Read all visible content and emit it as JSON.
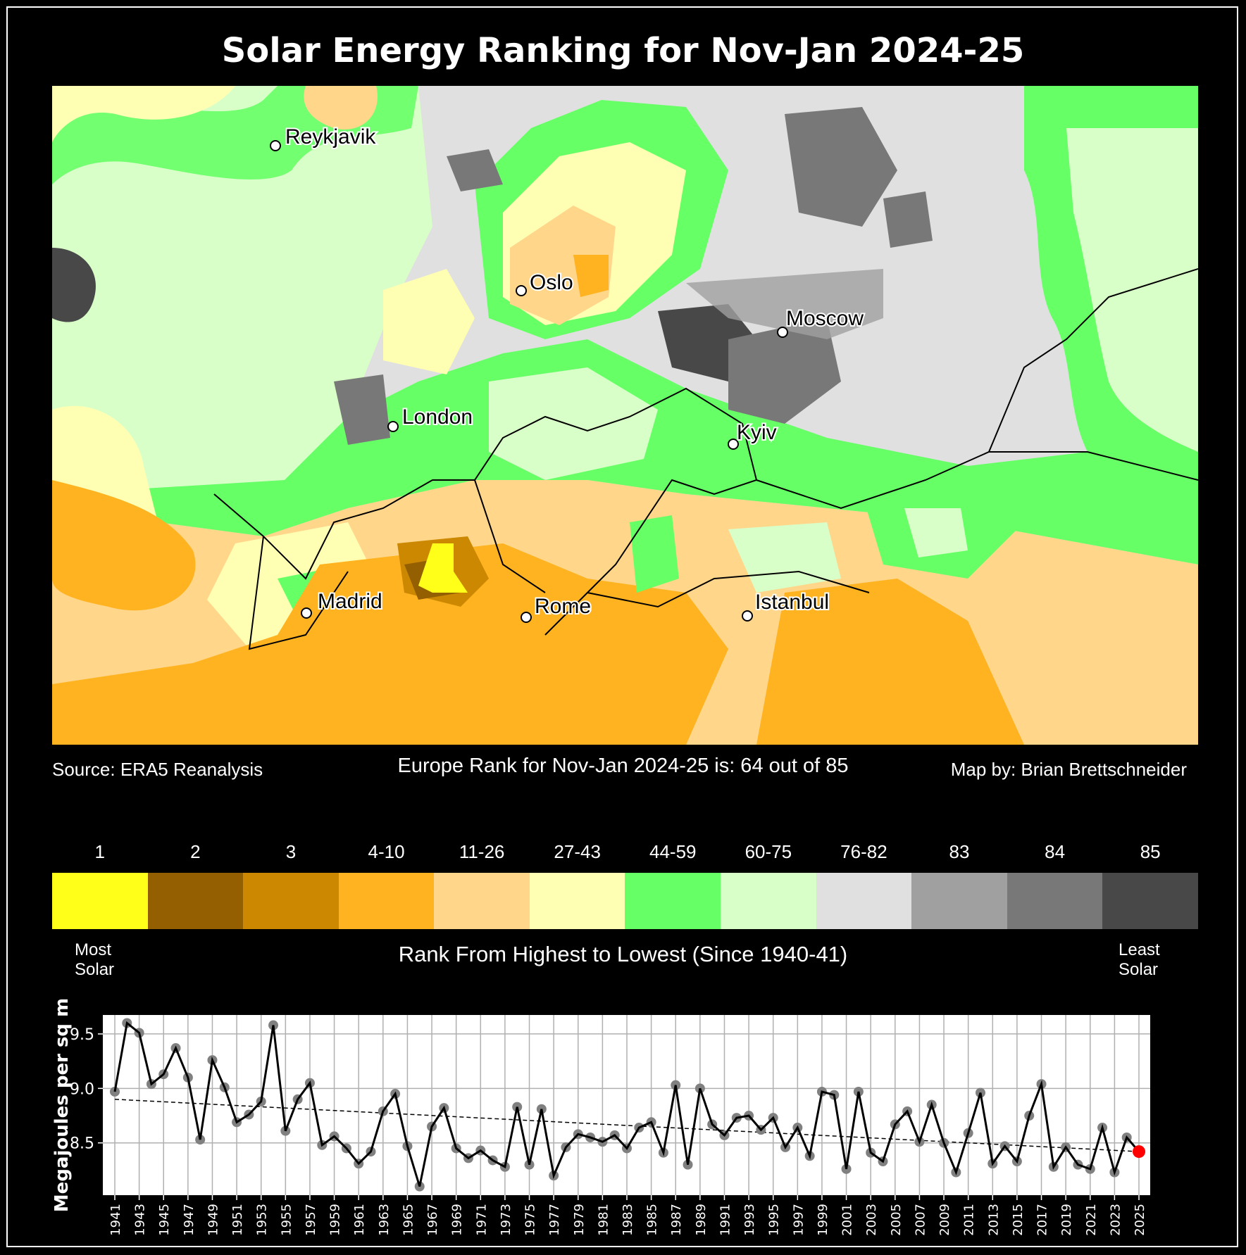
{
  "title": "Solar Energy Ranking for Nov-Jan 2024-25",
  "map": {
    "cities": [
      {
        "name": "Reykjavik"
      },
      {
        "name": "Oslo"
      },
      {
        "name": "Moscow"
      },
      {
        "name": "London"
      },
      {
        "name": "Kyiv"
      },
      {
        "name": "Madrid"
      },
      {
        "name": "Rome"
      },
      {
        "name": "Istanbul"
      }
    ]
  },
  "footer": {
    "source": "Source: ERA5 Reanalysis",
    "rank_text": "Europe Rank for Nov-Jan 2024-25 is: 64 out of 85",
    "credit": "Map by: Brian Brettschneider"
  },
  "colorbar": {
    "bins": [
      {
        "label": "1",
        "color": "#ffff1a"
      },
      {
        "label": "2",
        "color": "#935f00"
      },
      {
        "label": "3",
        "color": "#cc8800"
      },
      {
        "label": "4-10",
        "color": "#ffb320"
      },
      {
        "label": "11-26",
        "color": "#ffd68a"
      },
      {
        "label": "27-43",
        "color": "#ffffb4"
      },
      {
        "label": "44-59",
        "color": "#66ff66"
      },
      {
        "label": "60-75",
        "color": "#d9ffc8"
      },
      {
        "label": "76-82",
        "color": "#e0e0e0"
      },
      {
        "label": "83",
        "color": "#a0a0a0"
      },
      {
        "label": "84",
        "color": "#787878"
      },
      {
        "label": "85",
        "color": "#484848"
      }
    ],
    "left_note": "Most\nSolar",
    "right_note": "Least\nSolar",
    "title": "Rank From Highest to Lowest (Since 1940-41)"
  },
  "chart_data": {
    "type": "line",
    "title": "",
    "xlabel": "",
    "ylabel": "Megajoules per sq m",
    "ylim": [
      8.02,
      9.674
    ],
    "yticks": [
      8.5,
      9.0,
      9.5
    ],
    "ytick_labels": [
      "8.5",
      "9.0",
      "9.5"
    ],
    "grid": true,
    "x": [
      1941,
      1942,
      1943,
      1944,
      1945,
      1946,
      1947,
      1948,
      1949,
      1950,
      1951,
      1952,
      1953,
      1954,
      1955,
      1956,
      1957,
      1958,
      1959,
      1960,
      1961,
      1962,
      1963,
      1964,
      1965,
      1966,
      1967,
      1968,
      1969,
      1970,
      1971,
      1972,
      1973,
      1974,
      1975,
      1976,
      1977,
      1978,
      1979,
      1980,
      1981,
      1982,
      1983,
      1984,
      1985,
      1986,
      1987,
      1988,
      1989,
      1990,
      1991,
      1992,
      1993,
      1994,
      1995,
      1996,
      1997,
      1998,
      1999,
      2000,
      2001,
      2002,
      2003,
      2004,
      2005,
      2006,
      2007,
      2008,
      2009,
      2010,
      2011,
      2012,
      2013,
      2014,
      2015,
      2016,
      2017,
      2018,
      2019,
      2020,
      2021,
      2022,
      2023,
      2024,
      2025
    ],
    "series": [
      {
        "name": "Megajoules per sq m",
        "color": "#000000",
        "marker_color": "#808080",
        "values": [
          8.97,
          9.6,
          9.51,
          9.04,
          9.13,
          9.37,
          9.1,
          8.53,
          9.26,
          9.01,
          8.69,
          8.76,
          8.88,
          9.58,
          8.61,
          8.9,
          9.05,
          8.48,
          8.56,
          8.45,
          8.31,
          8.42,
          8.79,
          8.95,
          8.47,
          8.1,
          8.65,
          8.82,
          8.45,
          8.36,
          8.43,
          8.34,
          8.28,
          8.83,
          8.3,
          8.81,
          8.2,
          8.46,
          8.58,
          8.55,
          8.51,
          8.57,
          8.45,
          8.64,
          8.69,
          8.41,
          9.03,
          8.3,
          9.0,
          8.67,
          8.57,
          8.73,
          8.75,
          8.62,
          8.73,
          8.46,
          8.64,
          8.38,
          8.97,
          8.94,
          8.26,
          8.97,
          8.41,
          8.33,
          8.67,
          8.79,
          8.51,
          8.85,
          8.5,
          8.23,
          8.59,
          8.96,
          8.31,
          8.47,
          8.33,
          8.75,
          9.04,
          8.28,
          8.46,
          8.3,
          8.26,
          8.64,
          8.23,
          8.55,
          8.42
        ]
      },
      {
        "name": "Trend",
        "type": "dashed-line",
        "color": "#000000",
        "start": [
          1941,
          8.9
        ],
        "end": [
          2025,
          8.42
        ]
      }
    ],
    "highlight": {
      "x": 2025,
      "value": 8.42,
      "color": "#ff0000"
    },
    "xtick_labels": [
      "1941",
      "1943",
      "1945",
      "1947",
      "1949",
      "1951",
      "1953",
      "1955",
      "1957",
      "1959",
      "1961",
      "1963",
      "1965",
      "1967",
      "1969",
      "1971",
      "1973",
      "1975",
      "1977",
      "1979",
      "1981",
      "1983",
      "1985",
      "1987",
      "1989",
      "1991",
      "1993",
      "1995",
      "1997",
      "1999",
      "2001",
      "2003",
      "2005",
      "2007",
      "2009",
      "2011",
      "2013",
      "2015",
      "2017",
      "2019",
      "2021",
      "2023",
      "2025"
    ]
  }
}
